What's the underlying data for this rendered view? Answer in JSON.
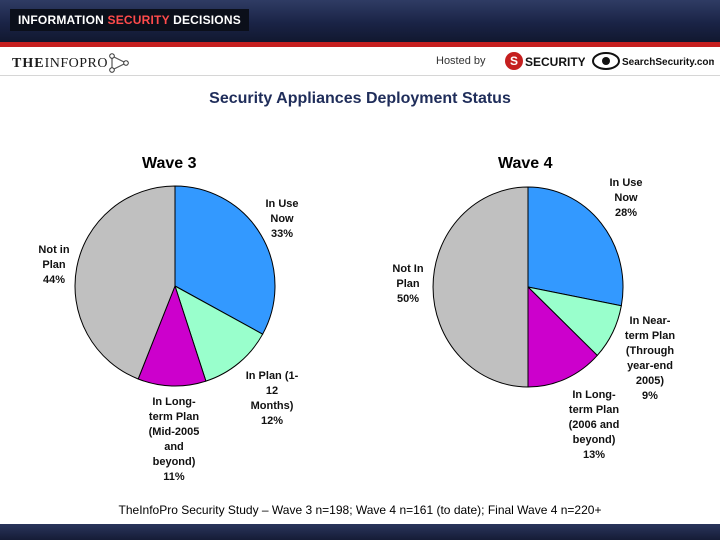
{
  "header": {
    "badge_main": "INFORMATION ",
    "badge_accent": "SECURITY",
    "badge_end": " DECISIONS",
    "left_logo_the": "THE",
    "left_logo_info": "INFO",
    "left_logo_pro": "PRO",
    "hosted_by": "Hosted by",
    "security_logo_text": "SECURITY",
    "search_logo_text": "SearchSecurity.com"
  },
  "title": "Security Appliances Deployment Status",
  "footer": "TheInfoPro Security Study – Wave 3 n=198; Wave 4 n=161 (to date); Final Wave 4 n=220+",
  "colors": {
    "in_use": "#3399ff",
    "near_term": "#99ffcc",
    "long_term": "#cc00cc",
    "not_in_plan": "#c0c0c0"
  },
  "chart_data": [
    {
      "type": "pie",
      "title": "Wave 3",
      "categories": [
        "In Use Now",
        "In Plan (1-12 Months)",
        "In Long-term Plan (Mid-2005 and beyond)",
        "Not in Plan"
      ],
      "values": [
        33,
        12,
        11,
        44
      ],
      "labels": [
        "In Use\nNow\n33%",
        "In Plan (1-\n12\nMonths)\n12%",
        "In Long-\nterm Plan\n(Mid-2005\nand\nbeyond)\n11%",
        "Not in\nPlan\n44%"
      ]
    },
    {
      "type": "pie",
      "title": "Wave 4",
      "categories": [
        "In Use Now",
        "In Near-term Plan (Through year-end 2005)",
        "In Long-term Plan (2006 and beyond)",
        "Not In Plan"
      ],
      "values": [
        28,
        9,
        13,
        50
      ],
      "labels": [
        "In Use\nNow\n28%",
        "In Near-\nterm Plan\n(Through\nyear-end\n2005)\n9%",
        "In Long-\nterm Plan\n(2006 and\nbeyond)\n13%",
        "Not In\nPlan\n50%"
      ]
    }
  ]
}
